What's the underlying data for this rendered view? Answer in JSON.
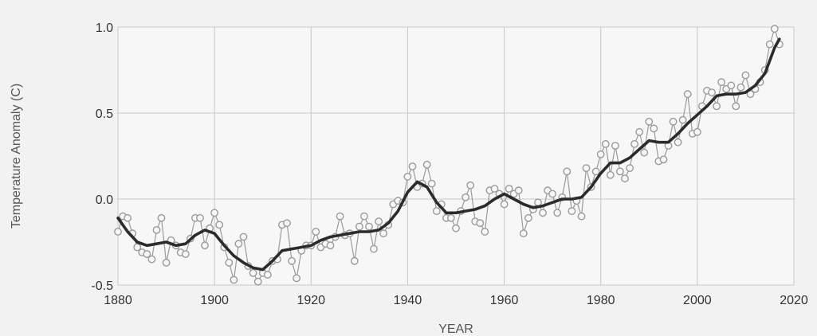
{
  "chart_data": {
    "type": "line",
    "title": "",
    "xlabel": "YEAR",
    "ylabel": "Temperature Anomaly (C)",
    "xlim": [
      1880,
      2020
    ],
    "ylim": [
      -0.5,
      1.0
    ],
    "x_ticks": [
      1880,
      1900,
      1920,
      1940,
      1960,
      1980,
      2000,
      2020
    ],
    "y_ticks": [
      -0.5,
      0.0,
      0.5,
      1.0
    ],
    "x_tick_labels": [
      "1880",
      "1900",
      "1920",
      "1940",
      "1960",
      "1980",
      "2000",
      "2020"
    ],
    "y_tick_labels": [
      "-0.5",
      "0.0",
      "0.5",
      "1.0"
    ],
    "grid": true,
    "colors": {
      "background": "#f2f2f2",
      "grid": "#c8c8c8",
      "annual_series": "#9a9a9a",
      "smoothed_series": "#2b2b2b"
    },
    "series": [
      {
        "style": "line-markers",
        "x": [
          1880,
          1881,
          1882,
          1883,
          1884,
          1885,
          1886,
          1887,
          1888,
          1889,
          1890,
          1891,
          1892,
          1893,
          1894,
          1895,
          1896,
          1897,
          1898,
          1899,
          1900,
          1901,
          1902,
          1903,
          1904,
          1905,
          1906,
          1907,
          1908,
          1909,
          1910,
          1911,
          1912,
          1913,
          1914,
          1915,
          1916,
          1917,
          1918,
          1919,
          1920,
          1921,
          1922,
          1923,
          1924,
          1925,
          1926,
          1927,
          1928,
          1929,
          1930,
          1931,
          1932,
          1933,
          1934,
          1935,
          1936,
          1937,
          1938,
          1939,
          1940,
          1941,
          1942,
          1943,
          1944,
          1945,
          1946,
          1947,
          1948,
          1949,
          1950,
          1951,
          1952,
          1953,
          1954,
          1955,
          1956,
          1957,
          1958,
          1959,
          1960,
          1961,
          1962,
          1963,
          1964,
          1965,
          1966,
          1967,
          1968,
          1969,
          1970,
          1971,
          1972,
          1973,
          1974,
          1975,
          1976,
          1977,
          1978,
          1979,
          1980,
          1981,
          1982,
          1983,
          1984,
          1985,
          1986,
          1987,
          1988,
          1989,
          1990,
          1991,
          1992,
          1993,
          1994,
          1995,
          1996,
          1997,
          1998,
          1999,
          2000,
          2001,
          2002,
          2003,
          2004,
          2005,
          2006,
          2007,
          2008,
          2009,
          2010,
          2011,
          2012,
          2013,
          2014,
          2015,
          2016,
          2017
        ],
        "values": [
          -0.19,
          -0.1,
          -0.11,
          -0.2,
          -0.28,
          -0.31,
          -0.32,
          -0.35,
          -0.18,
          -0.11,
          -0.37,
          -0.24,
          -0.27,
          -0.31,
          -0.32,
          -0.23,
          -0.11,
          -0.11,
          -0.27,
          -0.17,
          -0.08,
          -0.15,
          -0.28,
          -0.37,
          -0.47,
          -0.26,
          -0.22,
          -0.39,
          -0.43,
          -0.48,
          -0.43,
          -0.44,
          -0.36,
          -0.35,
          -0.15,
          -0.14,
          -0.36,
          -0.46,
          -0.3,
          -0.27,
          -0.27,
          -0.19,
          -0.28,
          -0.26,
          -0.27,
          -0.22,
          -0.1,
          -0.21,
          -0.2,
          -0.36,
          -0.16,
          -0.1,
          -0.16,
          -0.29,
          -0.13,
          -0.2,
          -0.15,
          -0.03,
          -0.01,
          -0.02,
          0.13,
          0.19,
          0.07,
          0.09,
          0.2,
          0.09,
          -0.07,
          -0.03,
          -0.11,
          -0.11,
          -0.17,
          -0.07,
          0.01,
          0.08,
          -0.13,
          -0.14,
          -0.19,
          0.05,
          0.06,
          0.03,
          -0.03,
          0.06,
          0.03,
          0.05,
          -0.2,
          -0.11,
          -0.06,
          -0.02,
          -0.08,
          0.05,
          0.03,
          -0.08,
          0.01,
          0.16,
          -0.07,
          -0.01,
          -0.1,
          0.18,
          0.07,
          0.16,
          0.26,
          0.32,
          0.14,
          0.31,
          0.16,
          0.12,
          0.18,
          0.32,
          0.39,
          0.27,
          0.45,
          0.41,
          0.22,
          0.23,
          0.31,
          0.45,
          0.33,
          0.46,
          0.61,
          0.38,
          0.39,
          0.54,
          0.63,
          0.62,
          0.54,
          0.68,
          0.64,
          0.66,
          0.54,
          0.65,
          0.72,
          0.61,
          0.64,
          0.68,
          0.75,
          0.9,
          0.99,
          0.9
        ]
      },
      {
        "style": "smoothed",
        "x": [
          1880,
          1882,
          1884,
          1886,
          1888,
          1890,
          1892,
          1894,
          1896,
          1898,
          1900,
          1902,
          1904,
          1906,
          1908,
          1910,
          1912,
          1914,
          1916,
          1918,
          1920,
          1922,
          1924,
          1926,
          1928,
          1930,
          1932,
          1934,
          1936,
          1938,
          1940,
          1942,
          1944,
          1946,
          1948,
          1950,
          1952,
          1954,
          1956,
          1958,
          1960,
          1962,
          1964,
          1966,
          1968,
          1970,
          1972,
          1974,
          1976,
          1978,
          1980,
          1982,
          1984,
          1986,
          1988,
          1990,
          1992,
          1994,
          1996,
          1998,
          2000,
          2002,
          2004,
          2006,
          2008,
          2010,
          2012,
          2014,
          2016,
          2017
        ],
        "values": [
          -0.11,
          -0.19,
          -0.25,
          -0.27,
          -0.26,
          -0.25,
          -0.27,
          -0.26,
          -0.21,
          -0.18,
          -0.2,
          -0.27,
          -0.33,
          -0.37,
          -0.4,
          -0.41,
          -0.36,
          -0.3,
          -0.29,
          -0.28,
          -0.27,
          -0.24,
          -0.22,
          -0.21,
          -0.2,
          -0.19,
          -0.19,
          -0.18,
          -0.14,
          -0.07,
          0.04,
          0.1,
          0.07,
          -0.02,
          -0.08,
          -0.08,
          -0.07,
          -0.06,
          -0.04,
          0.0,
          0.03,
          0.0,
          -0.03,
          -0.05,
          -0.04,
          -0.02,
          0.0,
          0.0,
          0.01,
          0.07,
          0.15,
          0.21,
          0.21,
          0.24,
          0.29,
          0.34,
          0.33,
          0.33,
          0.38,
          0.44,
          0.49,
          0.54,
          0.6,
          0.61,
          0.61,
          0.62,
          0.66,
          0.73,
          0.88,
          0.93
        ]
      }
    ]
  }
}
